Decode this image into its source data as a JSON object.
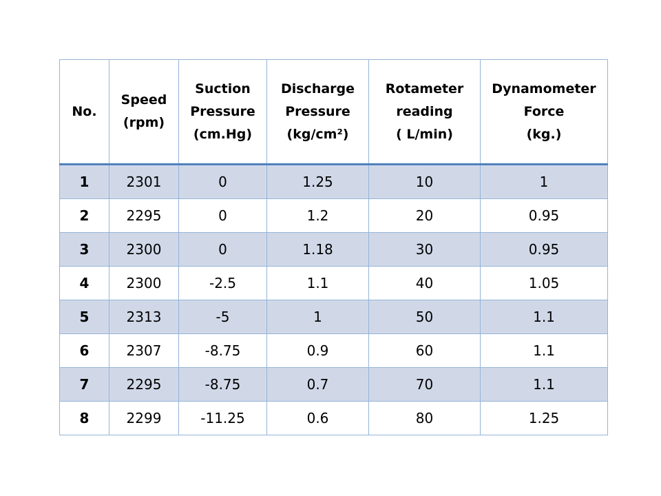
{
  "table": {
    "headers": [
      {
        "lines": [
          "No."
        ]
      },
      {
        "lines": [
          "Speed",
          "(rpm)"
        ]
      },
      {
        "lines": [
          "Suction",
          "Pressure",
          "(cm.Hg)"
        ]
      },
      {
        "lines": [
          "Discharge",
          "Pressure",
          "(kg/cm²)"
        ]
      },
      {
        "lines": [
          "Rotameter",
          "reading",
          "( L/min)"
        ]
      },
      {
        "lines": [
          "Dynamometer",
          "Force",
          "(kg.)"
        ]
      }
    ],
    "rows": [
      [
        "1",
        "2301",
        "0",
        "1.25",
        "10",
        "1"
      ],
      [
        "2",
        "2295",
        "0",
        "1.2",
        "20",
        "0.95"
      ],
      [
        "3",
        "2300",
        "0",
        "1.18",
        "30",
        "0.95"
      ],
      [
        "4",
        "2300",
        "-2.5",
        "1.1",
        "40",
        "1.05"
      ],
      [
        "5",
        "2313",
        "-5",
        "1",
        "50",
        "1.1"
      ],
      [
        "6",
        "2307",
        "-8.75",
        "0.9",
        "60",
        "1.1"
      ],
      [
        "7",
        "2295",
        "-8.75",
        "0.7",
        "70",
        "1.1"
      ],
      [
        "8",
        "2299",
        "-11.25",
        "0.6",
        "80",
        "1.25"
      ]
    ]
  },
  "colors": {
    "shaded_row": "#d0d8e8",
    "plain_row": "#ffffff",
    "border": "#95b3d7",
    "header_rule": "#4f81bd"
  }
}
